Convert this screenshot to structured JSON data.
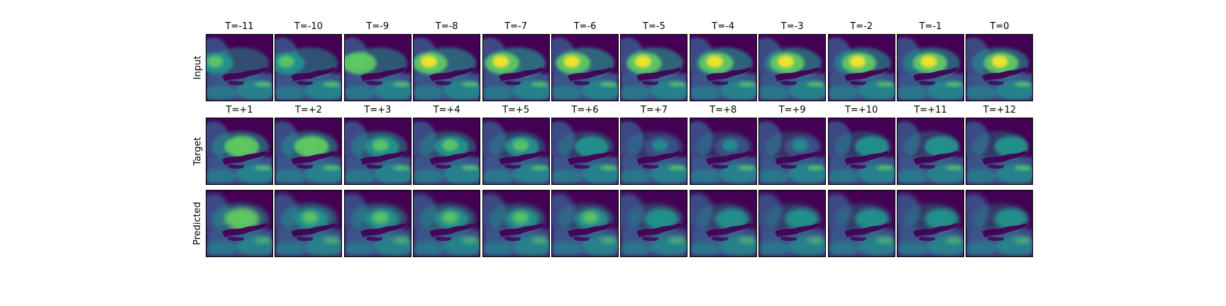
{
  "figure": {
    "colormap": "viridis",
    "colormap_stops": [
      "#440154",
      "#3b528b",
      "#21918c",
      "#5ec962",
      "#fde725"
    ],
    "rows": [
      {
        "key": "input",
        "label": "Input",
        "panels": [
          {
            "title": "T=-11",
            "intensity": 0.62
          },
          {
            "title": "T=-10",
            "intensity": 0.66
          },
          {
            "title": "T=-9",
            "intensity": 0.7
          },
          {
            "title": "T=-8",
            "intensity": 0.78
          },
          {
            "title": "T=-7",
            "intensity": 0.85
          },
          {
            "title": "T=-6",
            "intensity": 0.82
          },
          {
            "title": "T=-5",
            "intensity": 0.8
          },
          {
            "title": "T=-4",
            "intensity": 0.8
          },
          {
            "title": "T=-3",
            "intensity": 0.78
          },
          {
            "title": "T=-2",
            "intensity": 0.76
          },
          {
            "title": "T=-1",
            "intensity": 0.76
          },
          {
            "title": "T=0",
            "intensity": 0.74
          }
        ]
      },
      {
        "key": "target",
        "label": "Target",
        "panels": [
          {
            "title": "T=+1",
            "intensity": 0.72
          },
          {
            "title": "T=+2",
            "intensity": 0.7
          },
          {
            "title": "T=+3",
            "intensity": 0.64
          },
          {
            "title": "T=+4",
            "intensity": 0.56
          },
          {
            "title": "T=+5",
            "intensity": 0.48
          },
          {
            "title": "T=+6",
            "intensity": 0.44
          },
          {
            "title": "T=+7",
            "intensity": 0.4
          },
          {
            "title": "T=+8",
            "intensity": 0.36
          },
          {
            "title": "T=+9",
            "intensity": 0.38
          },
          {
            "title": "T=+10",
            "intensity": 0.44
          },
          {
            "title": "T=+11",
            "intensity": 0.46
          },
          {
            "title": "T=+12",
            "intensity": 0.44
          }
        ]
      },
      {
        "key": "predicted",
        "label": "Predicted",
        "panels": [
          {
            "title": "",
            "intensity": 0.7
          },
          {
            "title": "",
            "intensity": 0.68
          },
          {
            "title": "",
            "intensity": 0.64
          },
          {
            "title": "",
            "intensity": 0.6
          },
          {
            "title": "",
            "intensity": 0.54
          },
          {
            "title": "",
            "intensity": 0.5
          },
          {
            "title": "",
            "intensity": 0.46
          },
          {
            "title": "",
            "intensity": 0.44
          },
          {
            "title": "",
            "intensity": 0.42
          },
          {
            "title": "",
            "intensity": 0.42
          },
          {
            "title": "",
            "intensity": 0.42
          },
          {
            "title": "",
            "intensity": 0.42
          }
        ]
      }
    ]
  }
}
